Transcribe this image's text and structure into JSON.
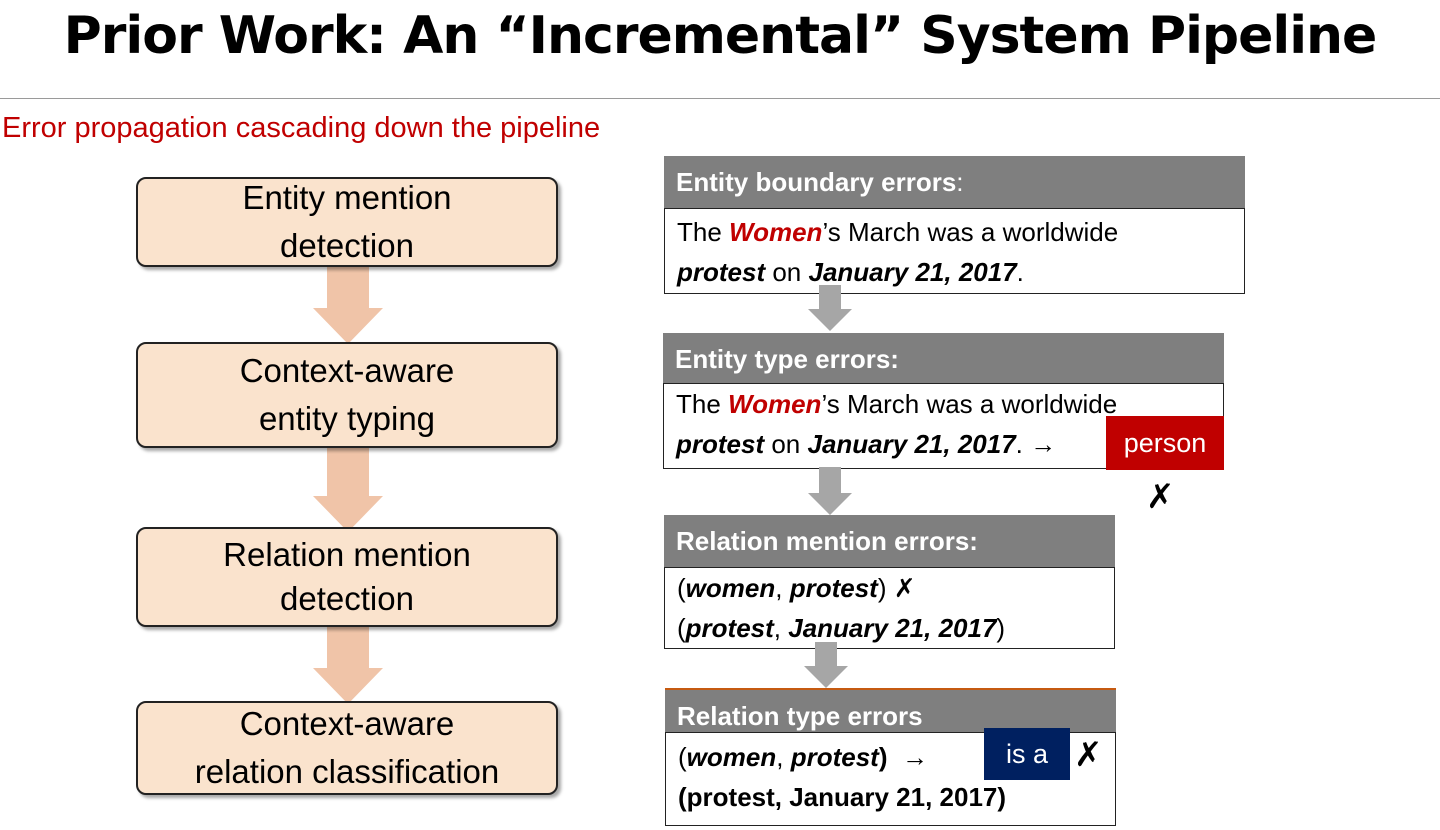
{
  "title": "Prior Work: An “Incremental” System Pipeline",
  "subtitle": "Error propagation cascading down the pipeline",
  "pipeline": {
    "stages": [
      {
        "line1": "Entity mention",
        "line2": "detection"
      },
      {
        "line1": "Context-aware",
        "line2": "entity typing"
      },
      {
        "line1": "Relation mention",
        "line2": "detection"
      },
      {
        "line1": "Context-aware",
        "line2": "relation classification"
      }
    ],
    "arrow_color": "#f0c4a8",
    "stage_fill": "#fae3cd"
  },
  "errors": {
    "boundary": {
      "heading": "Entity boundary errors",
      "heading_colon": ":",
      "t_the": "The ",
      "t_women": "Women",
      "t_rest1": "’s March was a worldwide",
      "t_protest": "protest",
      "t_on": " on ",
      "t_date": "January 21, 2017",
      "t_dot": "."
    },
    "type": {
      "heading": "Entity type errors:",
      "t_the": "The ",
      "t_women": "Women",
      "t_rest1": "’s March was a worldwide",
      "t_protest": "protest",
      "t_on": " on ",
      "t_date": "January 21, 2017",
      "t_dot": ". ",
      "arrow": "→",
      "tag": "person",
      "x": "✗"
    },
    "relation_mention": {
      "heading": "Relation mention errors:",
      "r1_open": "(",
      "r1_a": "women",
      "r1_comma": ",  ",
      "r1_b": "protest",
      "r1_close": ") ",
      "r1_x": "✗",
      "r2_open": "(",
      "r2_a": "protest",
      "r2_comma": ", ",
      "r2_b": "January 21, 2017",
      "r2_close": ")"
    },
    "relation_type": {
      "heading": "Relation type errors",
      "r1_open": "(",
      "r1_a": "women",
      "r1_comma": ",  ",
      "r1_b": "protest",
      "r1_close": ")",
      "arrow": "→",
      "tag": "is a",
      "x": "✗",
      "r2": "(protest, January 21, 2017)"
    }
  },
  "colors": {
    "header_gray": "#7f7f7f",
    "highlight_red": "#c00000",
    "tag_navy": "#002060",
    "connector_gray": "#a6a6a6"
  }
}
